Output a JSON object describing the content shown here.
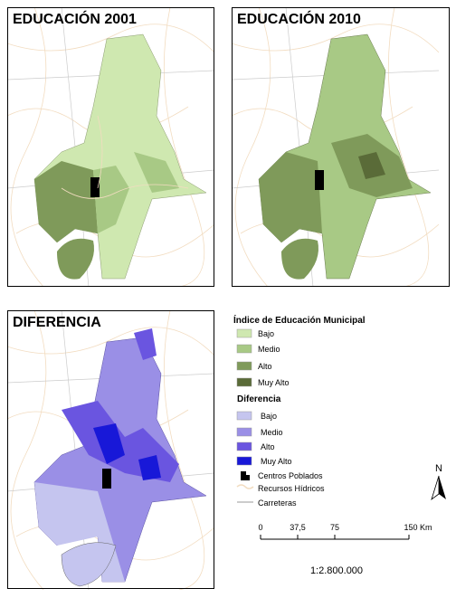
{
  "maps": [
    {
      "title": "EDUCACIÓN 2001"
    },
    {
      "title": "EDUCACIÓN 2010"
    },
    {
      "title": "DIFERENCIA"
    }
  ],
  "legend": {
    "title": "Índice de Educación Municipal",
    "index_items": [
      "Bajo",
      "Medio",
      "Alto",
      "Muy Alto"
    ],
    "difference_title": "Diferencia",
    "difference_items": [
      "Bajo",
      "Medio",
      "Alto",
      "Muy Alto"
    ],
    "other_items": [
      "Centros Poblados",
      "Recursos Hídricos",
      "Carreteras"
    ]
  },
  "north": "N",
  "scale_bar": {
    "labels": [
      "0",
      "37,5",
      "75",
      "150 Km"
    ],
    "ratio": "1:2.800.000"
  }
}
